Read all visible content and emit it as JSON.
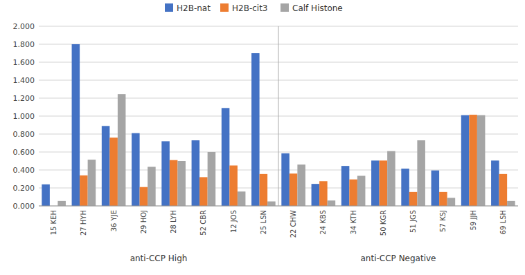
{
  "chart_data": {
    "type": "bar",
    "categories": [
      "15 KEH",
      "27 HYH",
      "36 YJE",
      "29 HOJ",
      "28 LYH",
      "52 CBR",
      "12 JOS",
      "25 LSN",
      "22 CHW",
      "24 KBS",
      "34 KTH",
      "50 KGR",
      "51 JGS",
      "57 KSJ",
      "59 JJH",
      "69 LSH"
    ],
    "series": [
      {
        "name": "H2B-nat",
        "color": "#4472C4",
        "values": [
          0.24,
          1.8,
          0.89,
          0.81,
          0.72,
          0.73,
          1.09,
          1.7,
          0.585,
          0.245,
          0.445,
          0.505,
          0.415,
          0.395,
          1.01,
          0.505
        ]
      },
      {
        "name": "H2B-cit3",
        "color": "#ED7D31",
        "values": [
          0.0,
          0.34,
          0.76,
          0.21,
          0.51,
          0.32,
          0.45,
          0.355,
          0.36,
          0.275,
          0.295,
          0.505,
          0.155,
          0.155,
          1.015,
          0.355
        ]
      },
      {
        "name": "Calf Histone",
        "color": "#A5A5A5",
        "values": [
          0.055,
          0.515,
          1.245,
          0.435,
          0.5,
          0.6,
          0.16,
          0.05,
          0.46,
          0.06,
          0.335,
          0.61,
          0.73,
          0.09,
          1.01,
          0.055
        ]
      }
    ],
    "annotations": [
      {
        "text": "anti-CCP High",
        "from": "15 KEH",
        "to": "25 LSN"
      },
      {
        "text": "anti-CCP Negative",
        "from": "22 CHW",
        "to": "69 LSH"
      }
    ],
    "ylim": [
      0,
      2.0
    ],
    "yticks": [
      {
        "value": 0.0,
        "label": "0.000"
      },
      {
        "value": 0.2,
        "label": "0.200"
      },
      {
        "value": 0.4,
        "label": "0.400"
      },
      {
        "value": 0.6,
        "label": "0.600"
      },
      {
        "value": 0.8,
        "label": "0.800"
      },
      {
        "value": 1.0,
        "label": "1.000"
      },
      {
        "value": 1.2,
        "label": "1.200"
      },
      {
        "value": 1.4,
        "label": "1.400"
      },
      {
        "value": 1.6,
        "label": "1.600"
      },
      {
        "value": 1.8,
        "label": "1.800"
      },
      {
        "value": 2.0,
        "label": "2.000"
      }
    ],
    "grid": true,
    "legend": "top"
  }
}
